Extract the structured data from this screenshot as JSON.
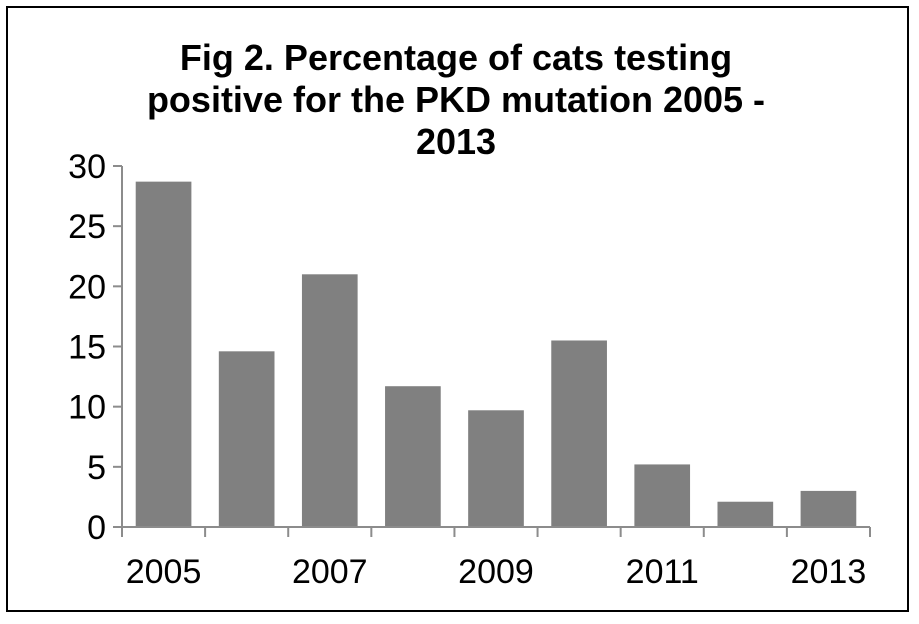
{
  "chart_data": {
    "type": "bar",
    "title_lines": [
      "Fig 2. Percentage of cats testing",
      "positive for the PKD mutation 2005 -",
      "2013"
    ],
    "xlabel": "",
    "ylabel": "",
    "categories": [
      "2005",
      "2006",
      "2007",
      "2008",
      "2009",
      "2010",
      "2011",
      "2012",
      "2013"
    ],
    "x_tick_labels": [
      "2005",
      "2007",
      "2009",
      "2011",
      "2013"
    ],
    "values": [
      28.7,
      14.6,
      21.0,
      11.7,
      9.7,
      15.5,
      5.2,
      2.1,
      3.0
    ],
    "ylim": [
      0,
      30
    ],
    "y_ticks": [
      0,
      5,
      10,
      15,
      20,
      25,
      30
    ],
    "bar_color": "#808080",
    "axis_color": "#8c8c8c",
    "grid": false,
    "legend": "none"
  }
}
